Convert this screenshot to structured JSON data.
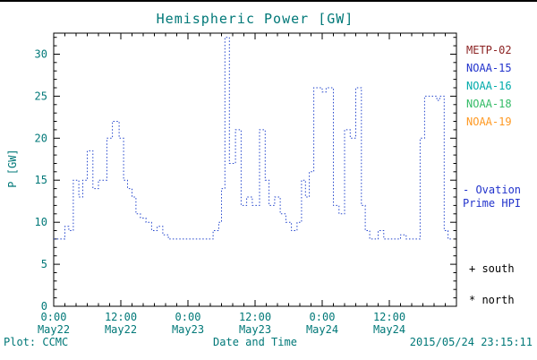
{
  "title": "Hemispheric Power [GW]",
  "colors": {
    "axis_text": "#007878",
    "axis_frame": "#000000",
    "data_line": "#2244CC"
  },
  "legend": {
    "items": [
      {
        "label": "METP-02",
        "color": "#8B2222"
      },
      {
        "label": "NOAA-15",
        "color": "#2233CC"
      },
      {
        "label": "NOAA-16",
        "color": "#00AAAA"
      },
      {
        "label": "NOAA-18",
        "color": "#33BB66"
      },
      {
        "label": "NOAA-19",
        "color": "#FF9922"
      }
    ]
  },
  "ovation": {
    "line1": "- Ovation",
    "line2": "Prime HPI",
    "color": "#2233CC"
  },
  "markers": {
    "south": "+ south",
    "north": "* north"
  },
  "footer": {
    "plot_credit": "Plot: CCMC",
    "xtitle": "Date and Time",
    "timestamp": "2015/05/24 23:15:11"
  },
  "chart_data": {
    "type": "line",
    "line_style": "stepped-dotted",
    "line_color": "#2244CC",
    "title": "Hemispheric Power [GW]",
    "xlabel": "Date and Time",
    "ylabel": "P [GW]",
    "ylim": [
      0,
      32.5
    ],
    "x_hours_range": [
      0,
      72
    ],
    "grid": false,
    "legend_position": "right-outside",
    "y_ticks": [
      0,
      5,
      10,
      15,
      20,
      25,
      30
    ],
    "x_ticks": [
      {
        "hour": 0,
        "time": "0:00",
        "date": "May22"
      },
      {
        "hour": 12,
        "time": "12:00",
        "date": "May22"
      },
      {
        "hour": 24,
        "time": "0:00",
        "date": "May23"
      },
      {
        "hour": 36,
        "time": "12:00",
        "date": "May23"
      },
      {
        "hour": 48,
        "time": "0:00",
        "date": "May24"
      },
      {
        "hour": 60,
        "time": "12:00",
        "date": "May24"
      }
    ],
    "series_name": "Ovation Prime HPI",
    "series_end_hour": 71.3,
    "series_steps_hour_value": [
      [
        0,
        8
      ],
      [
        2,
        9.5
      ],
      [
        2.7,
        9
      ],
      [
        3.5,
        15
      ],
      [
        4.5,
        13
      ],
      [
        5.2,
        15
      ],
      [
        6,
        18.5
      ],
      [
        7,
        14
      ],
      [
        8,
        15
      ],
      [
        9.5,
        20
      ],
      [
        10.5,
        22
      ],
      [
        11.7,
        20
      ],
      [
        12.5,
        15
      ],
      [
        13.2,
        14
      ],
      [
        14,
        13
      ],
      [
        14.7,
        11
      ],
      [
        15.5,
        10.5
      ],
      [
        16.5,
        10
      ],
      [
        17.5,
        9
      ],
      [
        18.5,
        9.5
      ],
      [
        19.5,
        8.5
      ],
      [
        20.5,
        8
      ],
      [
        28.5,
        9
      ],
      [
        29.5,
        10
      ],
      [
        30,
        14
      ],
      [
        30.6,
        32
      ],
      [
        31.4,
        17
      ],
      [
        32.5,
        21
      ],
      [
        33.5,
        12
      ],
      [
        34.5,
        13
      ],
      [
        35.5,
        12
      ],
      [
        36.8,
        21
      ],
      [
        37.8,
        15
      ],
      [
        38.5,
        12
      ],
      [
        39.5,
        13
      ],
      [
        40.5,
        11
      ],
      [
        41.5,
        10
      ],
      [
        42.5,
        9
      ],
      [
        43.5,
        10
      ],
      [
        44.3,
        15
      ],
      [
        45,
        13
      ],
      [
        45.7,
        16
      ],
      [
        46.5,
        26
      ],
      [
        48,
        25.5
      ],
      [
        48.7,
        26
      ],
      [
        50,
        12
      ],
      [
        51,
        11
      ],
      [
        52,
        21
      ],
      [
        53,
        20
      ],
      [
        54,
        26
      ],
      [
        55,
        12
      ],
      [
        55.7,
        9
      ],
      [
        56.5,
        8
      ],
      [
        58,
        9
      ],
      [
        59,
        8
      ],
      [
        62,
        8.5
      ],
      [
        63,
        8
      ],
      [
        65.5,
        20
      ],
      [
        66.3,
        25
      ],
      [
        68.5,
        24.5
      ],
      [
        69,
        25
      ],
      [
        69.8,
        9
      ],
      [
        70.5,
        8
      ]
    ]
  }
}
